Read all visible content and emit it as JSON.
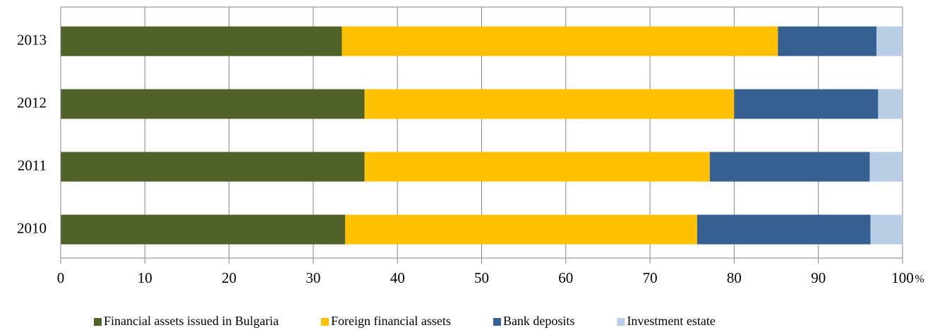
{
  "chart_data": {
    "type": "stacked_barh",
    "categories": [
      "2010",
      "2011",
      "2012",
      "2013"
    ],
    "series": [
      {
        "name": "Financial assets issued in Bulgaria",
        "color": "#4f6228",
        "values": [
          33.8,
          36.1,
          36.1,
          33.4
        ]
      },
      {
        "name": "Foreign financial assets",
        "color": "#ffc000",
        "values": [
          41.8,
          41.0,
          43.9,
          51.8
        ]
      },
      {
        "name": "Bank deposits",
        "color": "#376092",
        "values": [
          20.6,
          19.0,
          17.1,
          11.7
        ]
      },
      {
        "name": "Investment estate",
        "color": "#b9cde5",
        "values": [
          3.8,
          3.9,
          2.9,
          3.1
        ]
      }
    ],
    "x_label": "%",
    "xlim": [
      0,
      100
    ],
    "xticks": [
      0,
      10,
      20,
      30,
      40,
      50,
      60,
      70,
      80,
      90,
      100
    ],
    "grid": true,
    "legend": "bottom"
  }
}
